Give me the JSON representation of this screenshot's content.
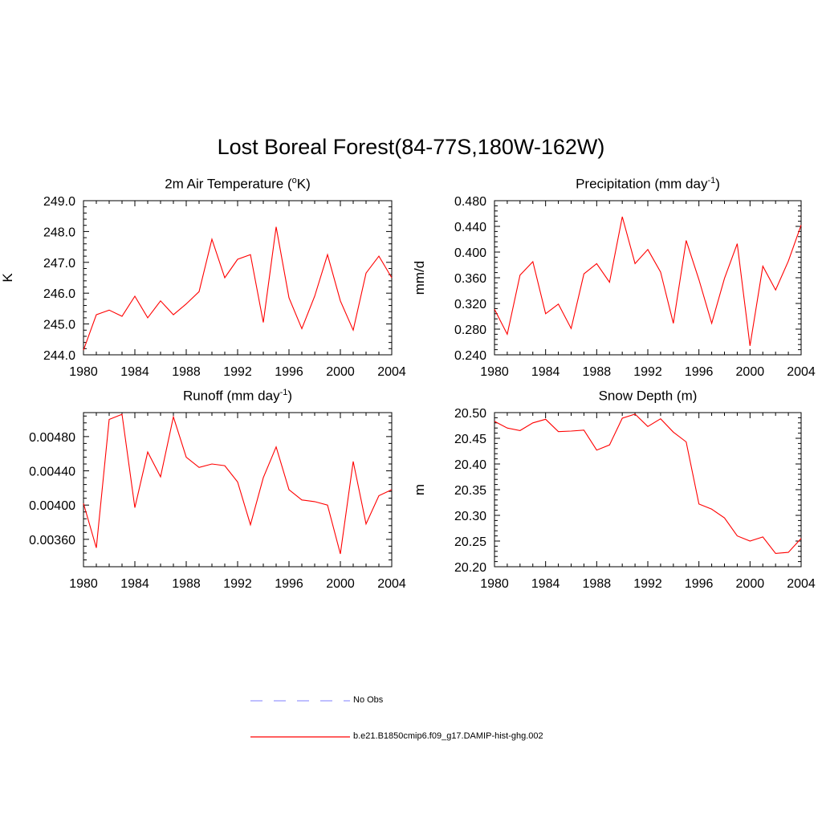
{
  "title": "Lost Boreal Forest(84-77S,180W-162W)",
  "colors": {
    "model": "#ff0000",
    "obs": "#9999ff"
  },
  "legend": [
    {
      "label": "No Obs",
      "style": "dashed",
      "color": "#9999ff"
    },
    {
      "label": "b.e21.B1850cmip6.f09_g17.DAMIP-hist-ghg.002",
      "style": "solid",
      "color": "#ff0000"
    }
  ],
  "chart_data": [
    {
      "type": "line",
      "title_main": "2m Air Temperature (",
      "title_sup": "o",
      "title_end": "K)",
      "ylabel": "K",
      "xlim": [
        1980,
        2004
      ],
      "ylim": [
        244.0,
        249.0
      ],
      "xticks": [
        "1980",
        "1984",
        "1988",
        "1992",
        "1996",
        "2000",
        "2004"
      ],
      "yticks": [
        "244.0",
        "245.0",
        "246.0",
        "247.0",
        "248.0",
        "249.0"
      ],
      "series": [
        {
          "x": [
            1980,
            1981,
            1982,
            1983,
            1984,
            1985,
            1986,
            1987,
            1988,
            1989,
            1990,
            1991,
            1992,
            1993,
            1994,
            1995,
            1996,
            1997,
            1998,
            1999,
            2000,
            2001,
            2002,
            2003,
            2004
          ],
          "values": [
            244.15,
            245.3,
            245.45,
            245.25,
            245.9,
            245.2,
            245.75,
            245.3,
            245.65,
            246.05,
            247.75,
            246.5,
            247.1,
            247.25,
            245.05,
            248.15,
            245.85,
            244.85,
            245.9,
            247.25,
            245.75,
            244.8,
            246.65,
            247.2,
            246.5
          ]
        }
      ]
    },
    {
      "type": "line",
      "title_main": "Precipitation (mm day",
      "title_sup": "-1",
      "title_end": ")",
      "ylabel": "mm/d",
      "xlim": [
        1980,
        2004
      ],
      "ylim": [
        0.24,
        0.48
      ],
      "xticks": [
        "1980",
        "1984",
        "1988",
        "1992",
        "1996",
        "2000",
        "2004"
      ],
      "yticks": [
        "0.240",
        "0.280",
        "0.320",
        "0.360",
        "0.400",
        "0.440",
        "0.480"
      ],
      "series": [
        {
          "x": [
            1980,
            1981,
            1982,
            1983,
            1984,
            1985,
            1986,
            1987,
            1988,
            1989,
            1990,
            1991,
            1992,
            1993,
            1994,
            1995,
            1996,
            1997,
            1998,
            1999,
            2000,
            2001,
            2002,
            2003,
            2004
          ],
          "values": [
            0.311,
            0.272,
            0.364,
            0.385,
            0.304,
            0.319,
            0.281,
            0.366,
            0.382,
            0.353,
            0.455,
            0.382,
            0.404,
            0.369,
            0.289,
            0.418,
            0.357,
            0.289,
            0.359,
            0.413,
            0.254,
            0.378,
            0.341,
            0.386,
            0.442
          ]
        }
      ]
    },
    {
      "type": "line",
      "title_main": "Runoff (mm day",
      "title_sup": "-1",
      "title_end": ")",
      "ylabel": "",
      "xlim": [
        1980,
        2004
      ],
      "ylim": [
        0.00328,
        0.00508
      ],
      "xticks": [
        "1980",
        "1984",
        "1988",
        "1992",
        "1996",
        "2000",
        "2004"
      ],
      "yticks": [
        "0.00360",
        "0.00400",
        "0.00440",
        "0.00480"
      ],
      "ytick_values": [
        0.0036,
        0.004,
        0.0044,
        0.0048
      ],
      "series": [
        {
          "x": [
            1980,
            1981,
            1982,
            1983,
            1984,
            1985,
            1986,
            1987,
            1988,
            1989,
            1990,
            1991,
            1992,
            1993,
            1994,
            1995,
            1996,
            1997,
            1998,
            1999,
            2000,
            2001,
            2002,
            2003,
            2004
          ],
          "values": [
            0.00402,
            0.0035,
            0.005,
            0.00506,
            0.00397,
            0.00462,
            0.00433,
            0.00503,
            0.00456,
            0.00444,
            0.00448,
            0.00446,
            0.00427,
            0.00377,
            0.00432,
            0.00468,
            0.00418,
            0.00406,
            0.00404,
            0.004,
            0.00343,
            0.00451,
            0.00378,
            0.00411,
            0.00418
          ]
        }
      ]
    },
    {
      "type": "line",
      "title_main": "Snow Depth (m)",
      "title_sup": "",
      "title_end": "",
      "ylabel": "m",
      "xlim": [
        1980,
        2004
      ],
      "ylim": [
        20.2,
        20.5
      ],
      "xticks": [
        "1980",
        "1984",
        "1988",
        "1992",
        "1996",
        "2000",
        "2004"
      ],
      "yticks": [
        "20.20",
        "20.25",
        "20.30",
        "20.35",
        "20.40",
        "20.45",
        "20.50"
      ],
      "series": [
        {
          "x": [
            1980,
            1981,
            1982,
            1983,
            1984,
            1985,
            1986,
            1987,
            1988,
            1989,
            1990,
            1991,
            1992,
            1993,
            1994,
            1995,
            1996,
            1997,
            1998,
            1999,
            2000,
            2001,
            2002,
            2003,
            2004
          ],
          "values": [
            20.483,
            20.47,
            20.465,
            20.48,
            20.487,
            20.463,
            20.464,
            20.466,
            20.427,
            20.437,
            20.489,
            20.497,
            20.473,
            20.488,
            20.462,
            20.443,
            20.322,
            20.312,
            20.295,
            20.26,
            20.25,
            20.258,
            20.226,
            20.228,
            20.255
          ]
        }
      ]
    }
  ]
}
